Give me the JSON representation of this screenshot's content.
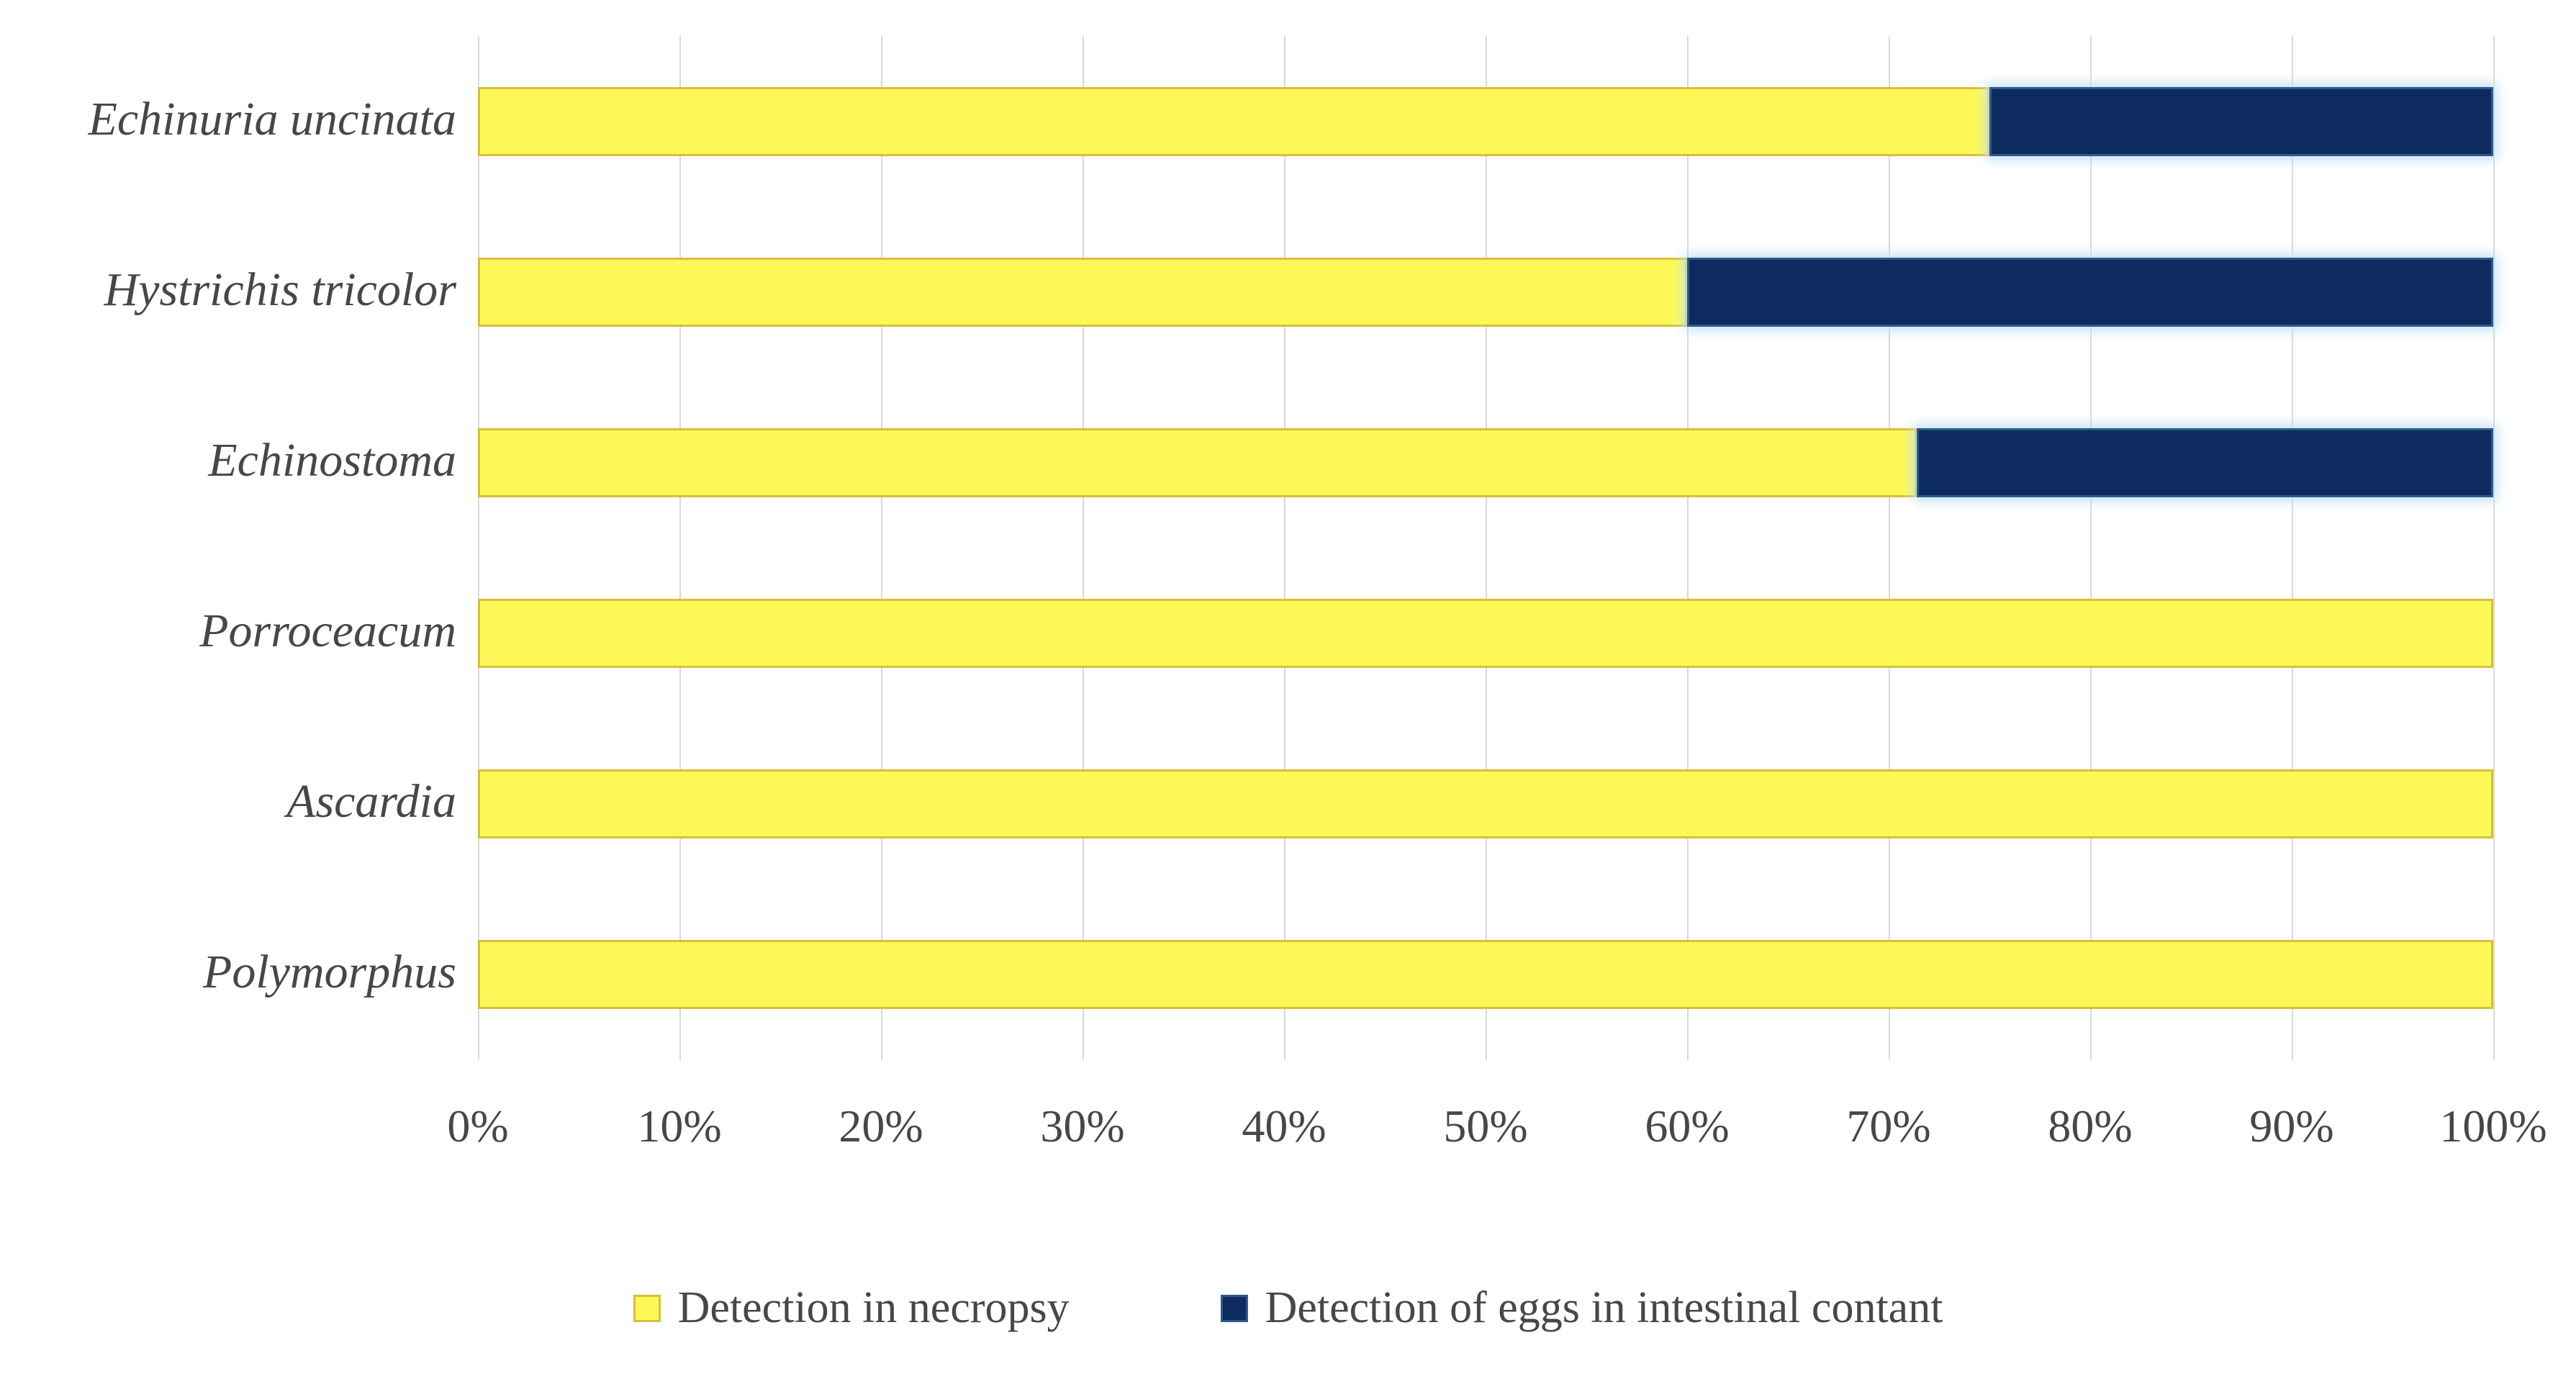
{
  "chart_data": {
    "type": "bar",
    "orientation": "horizontal",
    "stacked": true,
    "title": "",
    "categories": [
      "Echinuria uncinata",
      "Hystrichis tricolor",
      "Echinostoma",
      "Porroceacum",
      "Ascardia",
      "Polymorphus"
    ],
    "series": [
      {
        "name": "Detection in necropsy",
        "values": [
          75,
          60,
          71.4,
          100,
          100,
          100
        ],
        "color": "#FCF957",
        "border_color": "#D9BE3C"
      },
      {
        "name": "Detection of eggs in intestinal contant",
        "values": [
          25,
          40,
          28.6,
          0,
          0,
          0
        ],
        "color": "#0D2B5E",
        "border_color": "#2C5A8C"
      }
    ],
    "x_axis": {
      "min": 0,
      "max": 100,
      "tick_labels": [
        "0%",
        "10%",
        "20%",
        "30%",
        "40%",
        "50%",
        "60%",
        "70%",
        "80%",
        "90%",
        "100%"
      ]
    },
    "legend_position": "bottom",
    "grid": true,
    "style": {
      "background": "#FFFFFF",
      "gridline_color": "#D9D9D9",
      "text_color": "#474747",
      "navy_glow_color": "#C2E0F2"
    }
  }
}
